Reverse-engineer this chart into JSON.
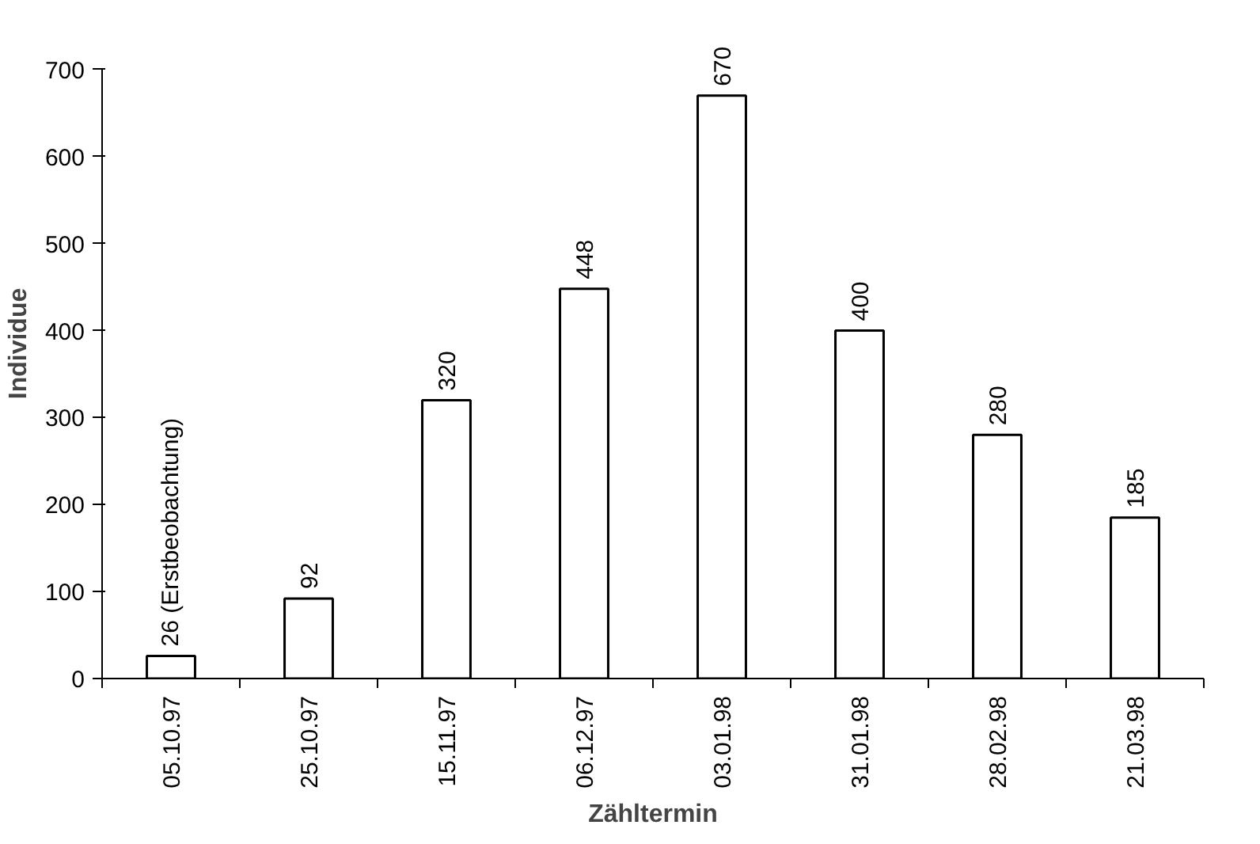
{
  "chart_data": {
    "type": "bar",
    "xlabel": "Zähltermin",
    "ylabel": "Individue",
    "categories": [
      "05.10.97",
      "25.10.97",
      "15.11.97",
      "06.12.97",
      "03.01.98",
      "31.01.98",
      "28.02.98",
      "21.03.98"
    ],
    "values": [
      26,
      92,
      320,
      448,
      670,
      400,
      280,
      185
    ],
    "value_labels": [
      "26 (Erstbeobachtung)",
      "92",
      "320",
      "448",
      "670",
      "400",
      "280",
      "185"
    ],
    "color": "#ffffff",
    "ylim": [
      0,
      700
    ],
    "yticks": [
      0,
      100,
      200,
      300,
      400,
      500,
      600,
      700
    ],
    "grid": false
  }
}
